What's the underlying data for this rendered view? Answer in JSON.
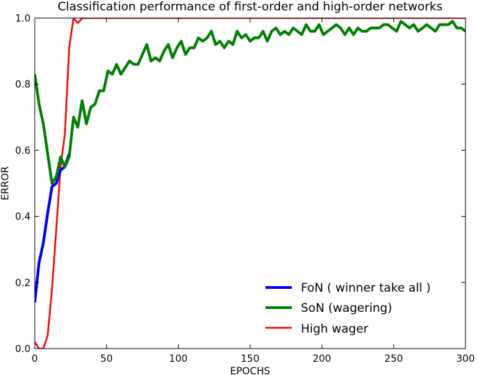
{
  "chart_data": {
    "type": "line",
    "title": "Classification performance of first-order and high-order networks",
    "xlabel": "EPOCHS",
    "ylabel": "ERROR",
    "xlim": [
      0,
      300
    ],
    "ylim": [
      0.0,
      1.0
    ],
    "xticks": [
      "0",
      "50",
      "100",
      "150",
      "200",
      "250",
      "300"
    ],
    "yticks": [
      "0.0",
      "0.2",
      "0.4",
      "0.6",
      "0.8",
      "1.0"
    ],
    "grid": false,
    "legend_position": "lower-right",
    "series": [
      {
        "name": "FoN ( winner take all )",
        "color": "#0000ff",
        "x": [
          0,
          3,
          6,
          9,
          12,
          15,
          18,
          21,
          24
        ],
        "y": [
          0.14,
          0.26,
          0.32,
          0.41,
          0.49,
          0.5,
          0.54,
          0.55,
          0.59
        ]
      },
      {
        "name": "SoN (wagering)",
        "color": "#008000",
        "x": [
          0,
          3,
          6,
          9,
          12,
          15,
          18,
          21,
          24,
          27,
          30,
          33,
          36,
          39,
          42,
          45,
          48,
          51,
          54,
          57,
          60,
          63,
          66,
          69,
          72,
          75,
          78,
          81,
          84,
          87,
          90,
          93,
          96,
          99,
          102,
          105,
          108,
          111,
          114,
          117,
          120,
          123,
          126,
          129,
          132,
          135,
          138,
          141,
          144,
          147,
          150,
          153,
          156,
          159,
          162,
          165,
          168,
          171,
          174,
          177,
          180,
          183,
          186,
          189,
          192,
          195,
          198,
          201,
          204,
          207,
          210,
          213,
          216,
          219,
          222,
          225,
          228,
          231,
          234,
          237,
          240,
          243,
          246,
          249,
          252,
          255,
          258,
          261,
          264,
          267,
          270,
          273,
          276,
          279,
          282,
          285,
          288,
          291,
          294,
          297,
          300
        ],
        "y": [
          0.83,
          0.74,
          0.68,
          0.59,
          0.5,
          0.52,
          0.58,
          0.55,
          0.58,
          0.7,
          0.67,
          0.75,
          0.68,
          0.73,
          0.74,
          0.78,
          0.78,
          0.84,
          0.83,
          0.86,
          0.83,
          0.85,
          0.87,
          0.86,
          0.86,
          0.89,
          0.92,
          0.87,
          0.88,
          0.87,
          0.9,
          0.92,
          0.88,
          0.91,
          0.93,
          0.89,
          0.91,
          0.91,
          0.94,
          0.93,
          0.94,
          0.96,
          0.92,
          0.93,
          0.91,
          0.93,
          0.92,
          0.96,
          0.94,
          0.95,
          0.93,
          0.94,
          0.94,
          0.96,
          0.93,
          0.96,
          0.97,
          0.95,
          0.96,
          0.95,
          0.97,
          0.96,
          0.95,
          0.98,
          0.96,
          0.96,
          0.98,
          0.95,
          0.96,
          0.97,
          0.98,
          0.97,
          0.95,
          0.97,
          0.95,
          0.97,
          0.96,
          0.96,
          0.97,
          0.97,
          0.97,
          0.98,
          0.98,
          0.97,
          0.96,
          0.99,
          0.98,
          0.97,
          0.98,
          0.96,
          0.97,
          0.98,
          0.97,
          0.96,
          0.98,
          0.98,
          0.98,
          0.99,
          0.97,
          0.97,
          0.96
        ]
      },
      {
        "name": "High wager",
        "color": "#ff0000",
        "x": [
          0,
          3,
          6,
          9,
          12,
          15,
          18,
          21,
          24,
          27,
          30,
          33,
          36,
          40,
          60,
          80,
          100,
          150,
          200,
          250,
          300
        ],
        "y": [
          0.02,
          0.0,
          0.0,
          0.04,
          0.18,
          0.36,
          0.55,
          0.65,
          0.91,
          1.0,
          0.985,
          1.0,
          1.0,
          1.0,
          1.0,
          1.0,
          1.0,
          1.0,
          1.0,
          1.0,
          1.0
        ]
      }
    ]
  }
}
